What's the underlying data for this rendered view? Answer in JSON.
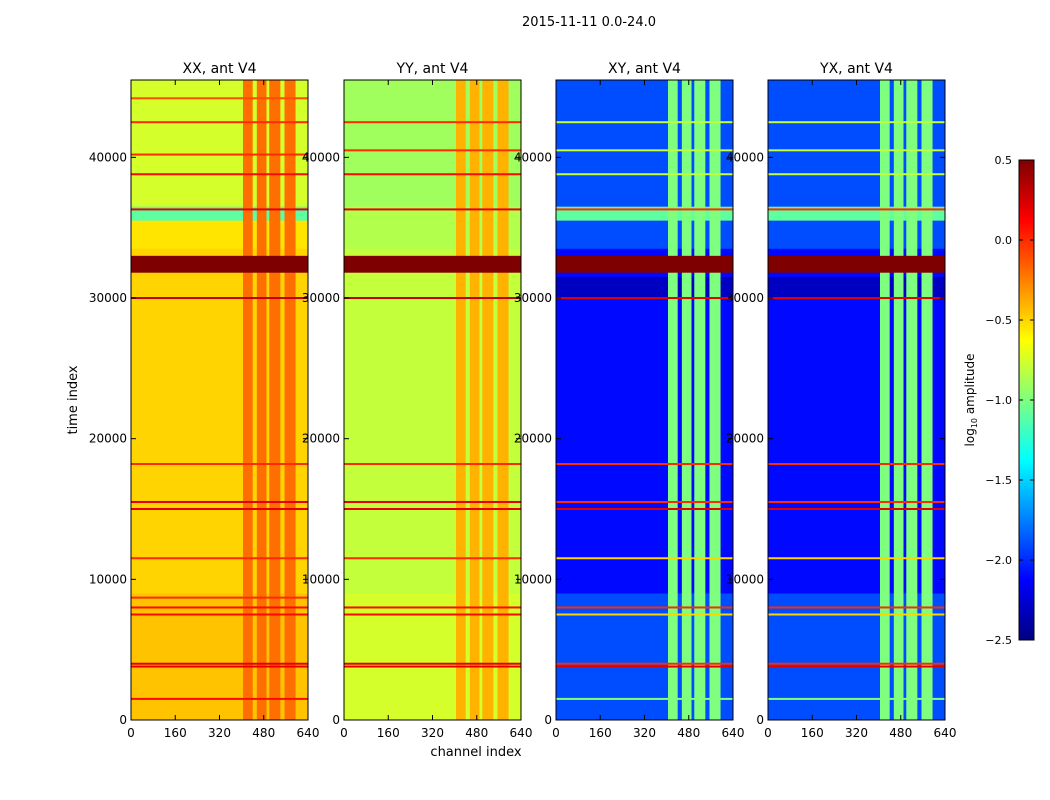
{
  "suptitle": "2015-11-11 0.0-24.0",
  "colors": {
    "jet": [
      "#00007f",
      "#0000ff",
      "#007fff",
      "#00ffff",
      "#7fff7f",
      "#ffff00",
      "#ff7f00",
      "#ff0000",
      "#7f0000"
    ]
  },
  "chart_data": {
    "type": "heatmap",
    "title": "2015-11-11 0.0-24.0",
    "xlabel": "channel index",
    "ylabel": "time index",
    "xlim": [
      0,
      640
    ],
    "ylim": [
      0,
      45500
    ],
    "xticks": [
      0,
      160,
      320,
      480,
      640
    ],
    "yticks": [
      0,
      10000,
      20000,
      30000,
      40000
    ],
    "xtick_labels": [
      "0",
      "160",
      "320",
      "480",
      "640"
    ],
    "ytick_labels": [
      "0",
      "10000",
      "20000",
      "30000",
      "40000"
    ],
    "colorbar": {
      "label_main": "log",
      "label_sub": "10",
      "label_rest": " amplitude",
      "range": [
        -2.5,
        0.5
      ],
      "ticks": [
        -2.5,
        -2.0,
        -1.5,
        -1.0,
        -0.5,
        0.0,
        0.5
      ],
      "tick_labels": [
        "−2.5",
        "−2.0",
        "−1.5",
        "−1.0",
        "−0.5",
        "0.0",
        "0.5"
      ]
    },
    "panels": [
      {
        "title": "XX, ant V4",
        "background_level": -0.5,
        "rfi_channel_level": -0.2,
        "rfi_channels": [
          [
            405,
            440
          ],
          [
            455,
            490
          ],
          [
            500,
            540
          ],
          [
            555,
            595
          ]
        ],
        "time_bands": [
          {
            "t0": 0,
            "t1": 9000,
            "level": -0.45
          },
          {
            "t0": 9000,
            "t1": 30000,
            "level": -0.5
          },
          {
            "t0": 33500,
            "t1": 35500,
            "level": -0.55
          },
          {
            "t0": 35500,
            "t1": 36500,
            "level": -1.1
          },
          {
            "t0": 36500,
            "t1": 45500,
            "level": -0.75
          }
        ],
        "flare": {
          "t0": 31800,
          "t1": 33000,
          "level": 0.5
        },
        "hlines": [
          {
            "t": 1500,
            "level": 0.1
          },
          {
            "t": 3800,
            "level": 0.2
          },
          {
            "t": 4000,
            "level": 0.2
          },
          {
            "t": 7500,
            "level": 0.1
          },
          {
            "t": 8000,
            "level": 0.1
          },
          {
            "t": 8700,
            "level": 0.0
          },
          {
            "t": 11500,
            "level": 0.0
          },
          {
            "t": 15000,
            "level": 0.2
          },
          {
            "t": 15500,
            "level": 0.2
          },
          {
            "t": 18200,
            "level": 0.0
          },
          {
            "t": 30000,
            "level": 0.3
          },
          {
            "t": 36300,
            "level": 0.2
          },
          {
            "t": 38800,
            "level": 0.1
          },
          {
            "t": 40200,
            "level": 0.0
          },
          {
            "t": 42500,
            "level": 0.0
          },
          {
            "t": 44200,
            "level": -0.1
          }
        ]
      },
      {
        "title": "YY, ant V4",
        "background_level": -0.8,
        "rfi_channel_level": -0.4,
        "rfi_channels": [
          [
            405,
            440
          ],
          [
            455,
            490
          ],
          [
            500,
            540
          ],
          [
            555,
            595
          ]
        ],
        "time_bands": [
          {
            "t0": 0,
            "t1": 9000,
            "level": -0.75
          },
          {
            "t0": 9000,
            "t1": 30000,
            "level": -0.8
          },
          {
            "t0": 33500,
            "t1": 36500,
            "level": -0.85
          },
          {
            "t0": 36500,
            "t1": 45500,
            "level": -0.9
          }
        ],
        "flare": {
          "t0": 31800,
          "t1": 33000,
          "level": 0.5
        },
        "hlines": [
          {
            "t": 3800,
            "level": 0.2
          },
          {
            "t": 4000,
            "level": 0.2
          },
          {
            "t": 7500,
            "level": 0.1
          },
          {
            "t": 8000,
            "level": 0.1
          },
          {
            "t": 11500,
            "level": 0.0
          },
          {
            "t": 15000,
            "level": 0.2
          },
          {
            "t": 15500,
            "level": 0.2
          },
          {
            "t": 18200,
            "level": 0.0
          },
          {
            "t": 30000,
            "level": 0.3
          },
          {
            "t": 36300,
            "level": 0.2
          },
          {
            "t": 38800,
            "level": 0.1
          },
          {
            "t": 40500,
            "level": 0.0
          },
          {
            "t": 42500,
            "level": 0.0
          }
        ]
      },
      {
        "title": "XY, ant V4",
        "background_level": -2.1,
        "rfi_channel_level": -1.0,
        "rfi_channels": [
          [
            405,
            440
          ],
          [
            455,
            490
          ],
          [
            500,
            540
          ],
          [
            555,
            595
          ]
        ],
        "time_bands": [
          {
            "t0": 0,
            "t1": 9000,
            "level": -1.9
          },
          {
            "t0": 9000,
            "t1": 30000,
            "level": -2.1
          },
          {
            "t0": 30000,
            "t1": 31500,
            "level": -2.3
          },
          {
            "t0": 33500,
            "t1": 35500,
            "level": -1.9
          },
          {
            "t0": 35500,
            "t1": 36500,
            "level": -1.1
          },
          {
            "t0": 36500,
            "t1": 45500,
            "level": -1.9
          }
        ],
        "flare": {
          "t0": 31800,
          "t1": 33000,
          "level": 0.5
        },
        "hlines": [
          {
            "t": 1500,
            "level": -1.0
          },
          {
            "t": 3800,
            "level": 0.2
          },
          {
            "t": 4000,
            "level": 0.0
          },
          {
            "t": 7500,
            "level": -0.5
          },
          {
            "t": 8000,
            "level": 0.0
          },
          {
            "t": 11500,
            "level": -0.5
          },
          {
            "t": 15000,
            "level": 0.2
          },
          {
            "t": 15500,
            "level": 0.0
          },
          {
            "t": 18200,
            "level": 0.0
          },
          {
            "t": 30000,
            "level": 0.2
          },
          {
            "t": 36300,
            "level": 0.0
          },
          {
            "t": 38800,
            "level": -0.8
          },
          {
            "t": 40500,
            "level": -0.8
          },
          {
            "t": 42500,
            "level": -0.8
          }
        ]
      },
      {
        "title": "YX, ant V4",
        "background_level": -2.1,
        "rfi_channel_level": -1.0,
        "rfi_channels": [
          [
            405,
            440
          ],
          [
            455,
            490
          ],
          [
            500,
            540
          ],
          [
            555,
            595
          ]
        ],
        "time_bands": [
          {
            "t0": 0,
            "t1": 9000,
            "level": -1.9
          },
          {
            "t0": 9000,
            "t1": 30000,
            "level": -2.1
          },
          {
            "t0": 30000,
            "t1": 31500,
            "level": -2.3
          },
          {
            "t0": 33500,
            "t1": 35500,
            "level": -1.9
          },
          {
            "t0": 35500,
            "t1": 36500,
            "level": -1.1
          },
          {
            "t0": 36500,
            "t1": 45500,
            "level": -1.9
          }
        ],
        "flare": {
          "t0": 31800,
          "t1": 33000,
          "level": 0.5
        },
        "hlines": [
          {
            "t": 1500,
            "level": -1.0
          },
          {
            "t": 3800,
            "level": 0.2
          },
          {
            "t": 4000,
            "level": 0.0
          },
          {
            "t": 7500,
            "level": -0.5
          },
          {
            "t": 8000,
            "level": 0.0
          },
          {
            "t": 11500,
            "level": -0.5
          },
          {
            "t": 15000,
            "level": 0.2
          },
          {
            "t": 15500,
            "level": 0.0
          },
          {
            "t": 18200,
            "level": 0.0
          },
          {
            "t": 30000,
            "level": 0.2
          },
          {
            "t": 36300,
            "level": 0.0
          },
          {
            "t": 38800,
            "level": -0.8
          },
          {
            "t": 40500,
            "level": -0.8
          },
          {
            "t": 42500,
            "level": -0.8
          }
        ]
      }
    ]
  }
}
